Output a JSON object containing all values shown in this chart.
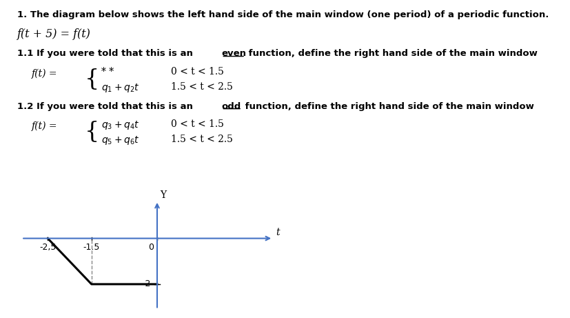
{
  "title_line1": "1. The diagram below shows the left hand side of the main window (one period) of a periodic function.",
  "equation_period": "f(t + 5) = f(t)",
  "piecewise_1_1_cond1": "0 < t < 1.5",
  "piecewise_1_1_cond2": "1.5 < t < 2.5",
  "piecewise_1_2_cond1": "0 < t < 1.5",
  "piecewise_1_2_cond2": "1.5 < t < 2.5",
  "graph": {
    "x_data": [
      -2.5,
      -1.5,
      0.0
    ],
    "y_data": [
      0.0,
      -2.0,
      -2.0
    ],
    "x_ticks": [
      -2.5,
      -1.5,
      0
    ],
    "x_tick_labels": [
      "-2,5",
      "-1.5",
      "0"
    ],
    "y_tick_vals": [
      -2.0
    ],
    "y_tick_labels": [
      "-2"
    ],
    "x_label": "t",
    "y_label": "Y",
    "line_color": "#000000",
    "dashed_color": "#888888",
    "axis_color": "#4472c4"
  },
  "background_color": "#ffffff",
  "text_color": "#000000"
}
